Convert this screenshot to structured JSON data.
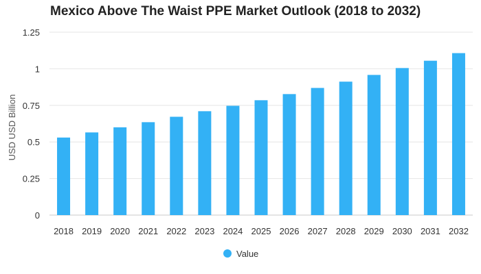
{
  "chart_data": {
    "type": "bar",
    "title": "Mexico Above The Waist PPE Market Outlook (2018 to 2032)",
    "xlabel": "",
    "ylabel": "USD USD Billion",
    "ylim": [
      0,
      1.25
    ],
    "yticks": [
      "0",
      "0.25",
      "0.5",
      "0.75",
      "1",
      "1.25"
    ],
    "grid": true,
    "legend_position": "bottom-center",
    "categories": [
      "2018",
      "2019",
      "2020",
      "2021",
      "2022",
      "2023",
      "2024",
      "2025",
      "2026",
      "2027",
      "2028",
      "2029",
      "2030",
      "2031",
      "2032"
    ],
    "series": [
      {
        "name": "Value",
        "color": "#33b1f5",
        "values": [
          0.53,
          0.565,
          0.6,
          0.635,
          0.672,
          0.71,
          0.747,
          0.785,
          0.827,
          0.869,
          0.912,
          0.958,
          1.005,
          1.055,
          1.107
        ]
      }
    ]
  }
}
